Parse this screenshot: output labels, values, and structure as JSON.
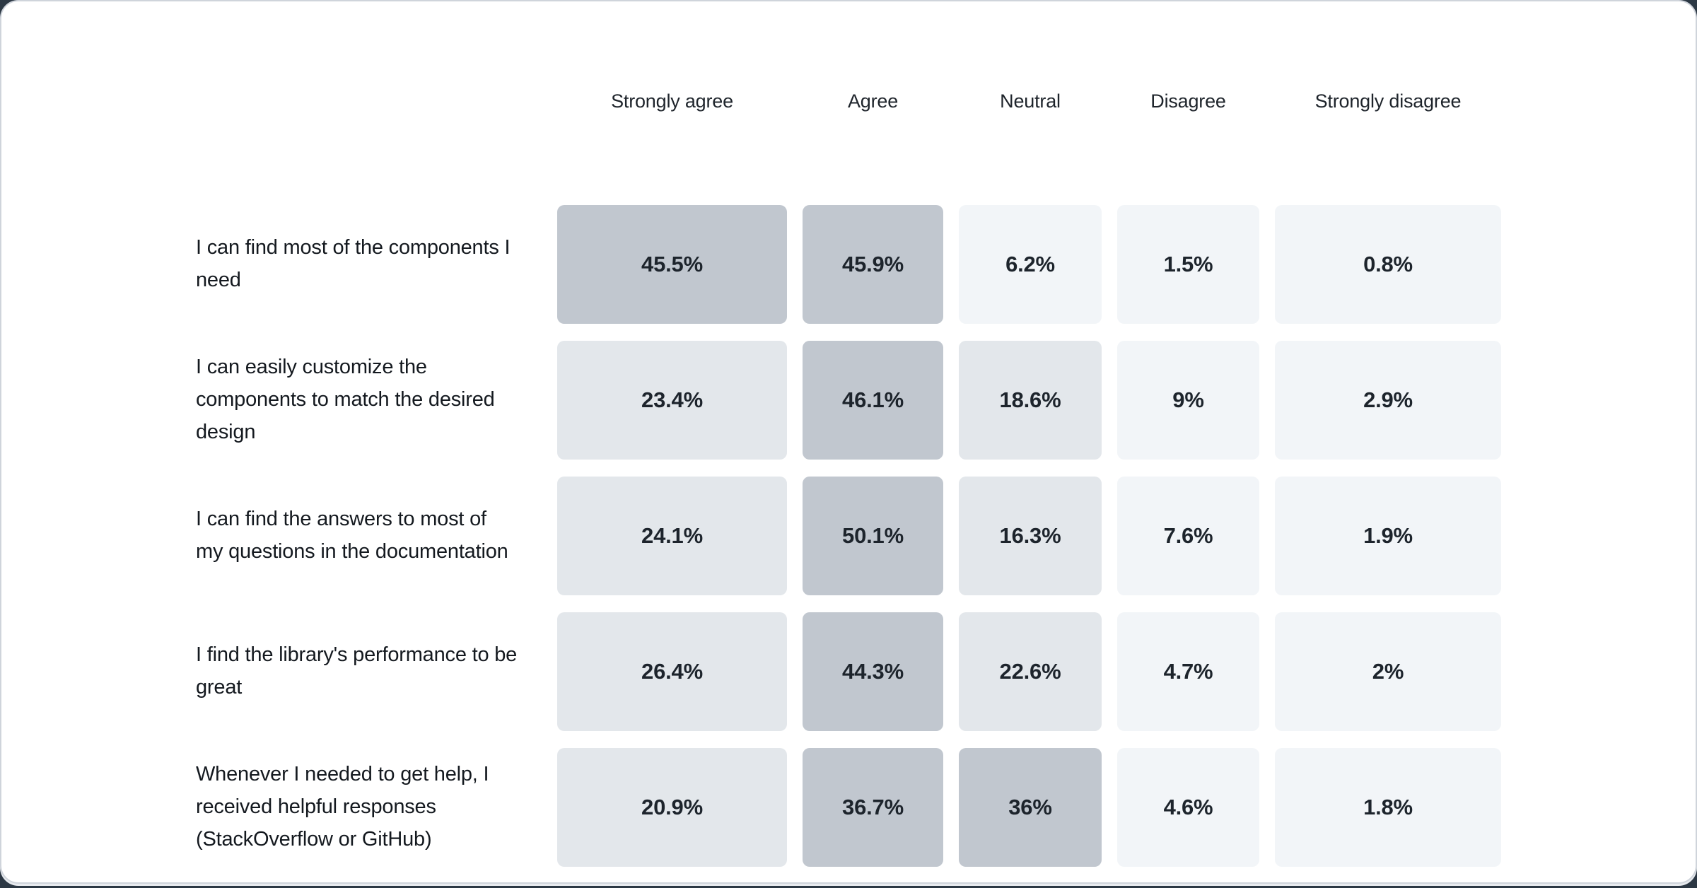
{
  "page": {
    "background_color": "#2c3844",
    "card_background": "#ffffff",
    "card_border_color": "#cfd4db"
  },
  "chart_data": {
    "type": "heatmap",
    "title": "",
    "columns": [
      "Strongly agree",
      "Agree",
      "Neutral",
      "Disagree",
      "Strongly disagree"
    ],
    "rows": [
      {
        "label": "I can find most of the components I need",
        "values": [
          45.5,
          45.9,
          6.2,
          1.5,
          0.8
        ]
      },
      {
        "label": "I can easily customize the components to match the desired design",
        "values": [
          23.4,
          46.1,
          18.6,
          9,
          2.9
        ]
      },
      {
        "label": "I can find the answers to most of my questions in the documentation",
        "values": [
          24.1,
          50.1,
          16.3,
          7.6,
          1.9
        ]
      },
      {
        "label": "I find the library's performance to be great",
        "values": [
          26.4,
          44.3,
          22.6,
          4.7,
          2
        ]
      },
      {
        "label": "Whenever I needed to get help, I received helpful responses (StackOverflow or GitHub)",
        "values": [
          20.9,
          36.7,
          36,
          4.6,
          1.8
        ]
      }
    ],
    "value_suffix": "%",
    "value_text_color": "#1d242c",
    "header_text_color": "#1e242b",
    "label_text_color": "#14191f",
    "color_scale": {
      "bins": [
        {
          "min": 30,
          "color": "#c1c7cf"
        },
        {
          "min": 10,
          "color": "#e3e7eb"
        },
        {
          "min": 0,
          "color": "#f2f5f8"
        }
      ]
    },
    "legend_position": "none",
    "grid": false
  }
}
